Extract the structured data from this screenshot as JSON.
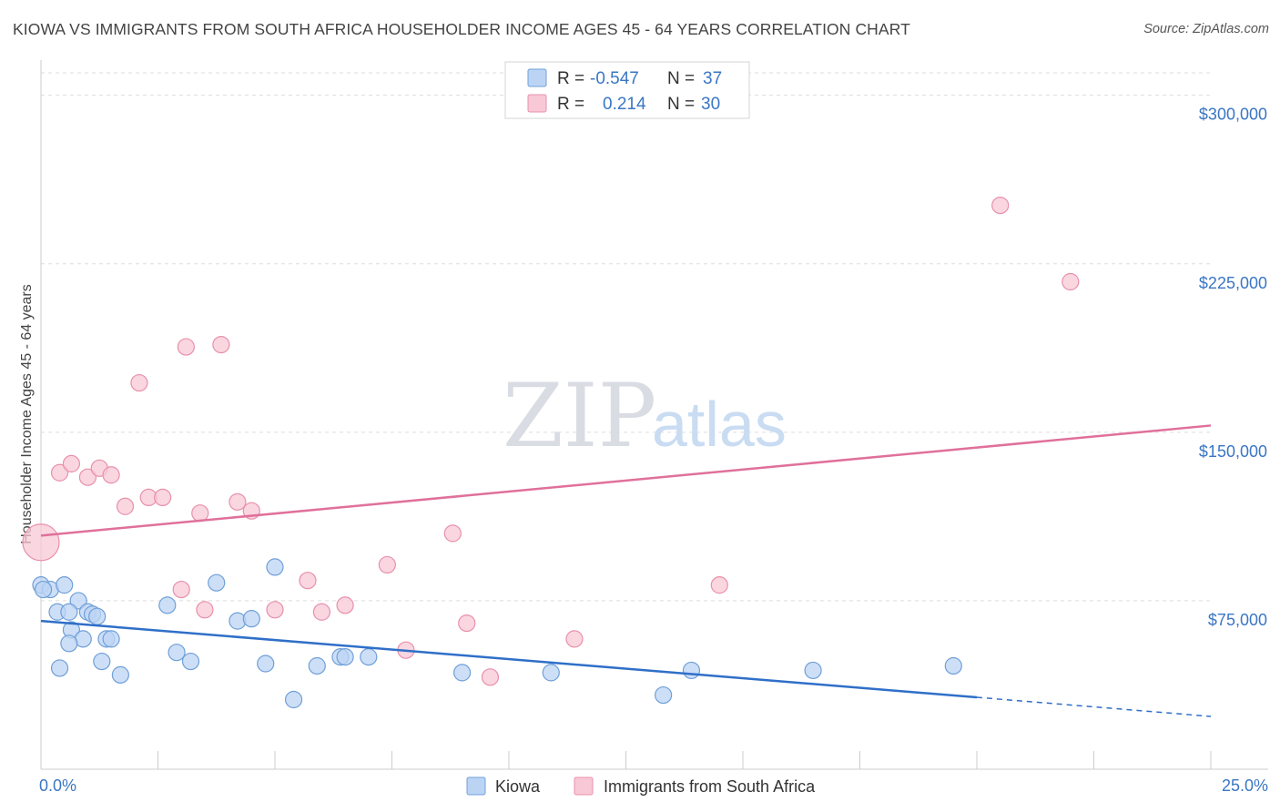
{
  "header": {
    "title": "KIOWA VS IMMIGRANTS FROM SOUTH AFRICA HOUSEHOLDER INCOME AGES 45 - 64 YEARS CORRELATION CHART",
    "source": "Source: ZipAtlas.com"
  },
  "watermark": {
    "zip": "ZIP",
    "atlas": "atlas"
  },
  "legend": {
    "r_label": "R =",
    "n_label": "N =",
    "rows": [
      {
        "r": "-0.547",
        "n": "37",
        "color": "#a9c8f0"
      },
      {
        "r": " 0.214",
        "n": "30",
        "color": "#f4b8cb"
      }
    ]
  },
  "colors": {
    "kiowa_fill": "#bcd4f4",
    "kiowa_stroke": "#6f9fd8",
    "kiowa_line": "#2f6fc8",
    "sa_fill": "#f8c8d6",
    "sa_stroke": "#e890ac",
    "sa_line": "#e0709a",
    "tick_text": "#3a76c4",
    "grid": "#dddddd"
  },
  "chart_data": {
    "type": "scatter",
    "xlabel": "",
    "ylabel": "Householder Income Ages 45 - 64 years",
    "xlim": [
      0,
      25
    ],
    "ylim": [
      0,
      310000
    ],
    "x_tick_labels": [
      "0.0%",
      "25.0%"
    ],
    "y_ticks": [
      75000,
      150000,
      225000,
      300000
    ],
    "y_tick_labels": [
      "$75,000",
      "$150,000",
      "$225,000",
      "$300,000"
    ],
    "grid": true,
    "legend_position": "top-center",
    "series": [
      {
        "name": "Kiowa",
        "points": [
          [
            0.0,
            82000
          ],
          [
            0.2,
            80000
          ],
          [
            0.5,
            82000
          ],
          [
            0.35,
            70000
          ],
          [
            0.8,
            75000
          ],
          [
            0.6,
            70000
          ],
          [
            0.65,
            62000
          ],
          [
            1.0,
            70000
          ],
          [
            1.1,
            69000
          ],
          [
            1.2,
            68000
          ],
          [
            0.9,
            58000
          ],
          [
            0.6,
            56000
          ],
          [
            1.4,
            58000
          ],
          [
            1.5,
            58000
          ],
          [
            1.3,
            48000
          ],
          [
            0.4,
            45000
          ],
          [
            1.7,
            42000
          ],
          [
            2.7,
            73000
          ],
          [
            2.9,
            52000
          ],
          [
            3.2,
            48000
          ],
          [
            3.75,
            83000
          ],
          [
            4.2,
            66000
          ],
          [
            4.5,
            67000
          ],
          [
            4.8,
            47000
          ],
          [
            5.0,
            90000
          ],
          [
            5.4,
            31000
          ],
          [
            5.9,
            46000
          ],
          [
            6.4,
            50000
          ],
          [
            6.5,
            50000
          ],
          [
            7.0,
            50000
          ],
          [
            9.0,
            43000
          ],
          [
            10.9,
            43000
          ],
          [
            13.3,
            33000
          ],
          [
            13.9,
            44000
          ],
          [
            16.5,
            44000
          ],
          [
            19.5,
            46000
          ],
          [
            0.05,
            80000
          ]
        ]
      },
      {
        "name": "Immigrants from South Africa",
        "points": [
          [
            0.0,
            101000
          ],
          [
            0.4,
            132000
          ],
          [
            0.65,
            136000
          ],
          [
            1.0,
            130000
          ],
          [
            1.25,
            134000
          ],
          [
            1.5,
            131000
          ],
          [
            1.8,
            117000
          ],
          [
            2.1,
            172000
          ],
          [
            2.3,
            121000
          ],
          [
            2.6,
            121000
          ],
          [
            3.0,
            80000
          ],
          [
            3.1,
            188000
          ],
          [
            3.4,
            114000
          ],
          [
            3.5,
            71000
          ],
          [
            3.85,
            189000
          ],
          [
            4.2,
            119000
          ],
          [
            4.5,
            115000
          ],
          [
            5.0,
            71000
          ],
          [
            5.7,
            84000
          ],
          [
            6.0,
            70000
          ],
          [
            6.5,
            73000
          ],
          [
            7.4,
            91000
          ],
          [
            7.8,
            53000
          ],
          [
            8.8,
            105000
          ],
          [
            9.1,
            65000
          ],
          [
            9.6,
            41000
          ],
          [
            11.4,
            58000
          ],
          [
            14.5,
            82000
          ],
          [
            20.5,
            251000
          ],
          [
            22.0,
            217000
          ]
        ]
      }
    ],
    "trendlines": [
      {
        "series": "Kiowa",
        "x": [
          0,
          20
        ],
        "y": [
          66000,
          32000
        ],
        "dashed_x": [
          20,
          25
        ],
        "dashed_y": [
          32000,
          23500
        ]
      },
      {
        "series": "Immigrants from South Africa",
        "x": [
          0,
          25
        ],
        "y": [
          104000,
          153000
        ]
      }
    ]
  }
}
